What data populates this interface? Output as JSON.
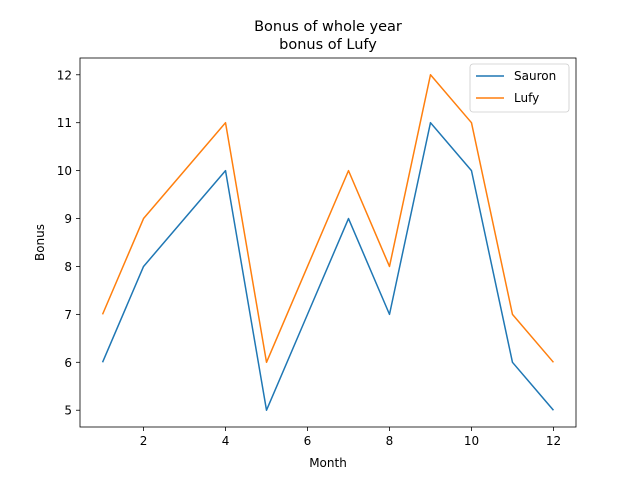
{
  "chart_data": {
    "type": "line",
    "title": "Bonus of whole year",
    "subtitle": "bonus of Lufy",
    "xlabel": "Month",
    "ylabel": "Bonus",
    "x": [
      1,
      2,
      3,
      4,
      5,
      6,
      7,
      8,
      9,
      10,
      11,
      12
    ],
    "xlim": [
      0.45,
      12.55
    ],
    "ylim": [
      4.65,
      12.35
    ],
    "xticks": [
      2,
      4,
      6,
      8,
      10,
      12
    ],
    "yticks": [
      5,
      6,
      7,
      8,
      9,
      10,
      11,
      12
    ],
    "grid": false,
    "legend_position": "top-right",
    "series": [
      {
        "name": "Sauron",
        "color": "#1f77b4",
        "values": [
          6,
          8,
          9,
          10,
          5,
          7,
          9,
          7,
          11,
          10,
          6,
          5
        ]
      },
      {
        "name": "Lufy",
        "color": "#ff7f0e",
        "values": [
          7,
          9,
          10,
          11,
          6,
          8,
          10,
          8,
          12,
          11,
          7,
          6
        ]
      }
    ]
  }
}
